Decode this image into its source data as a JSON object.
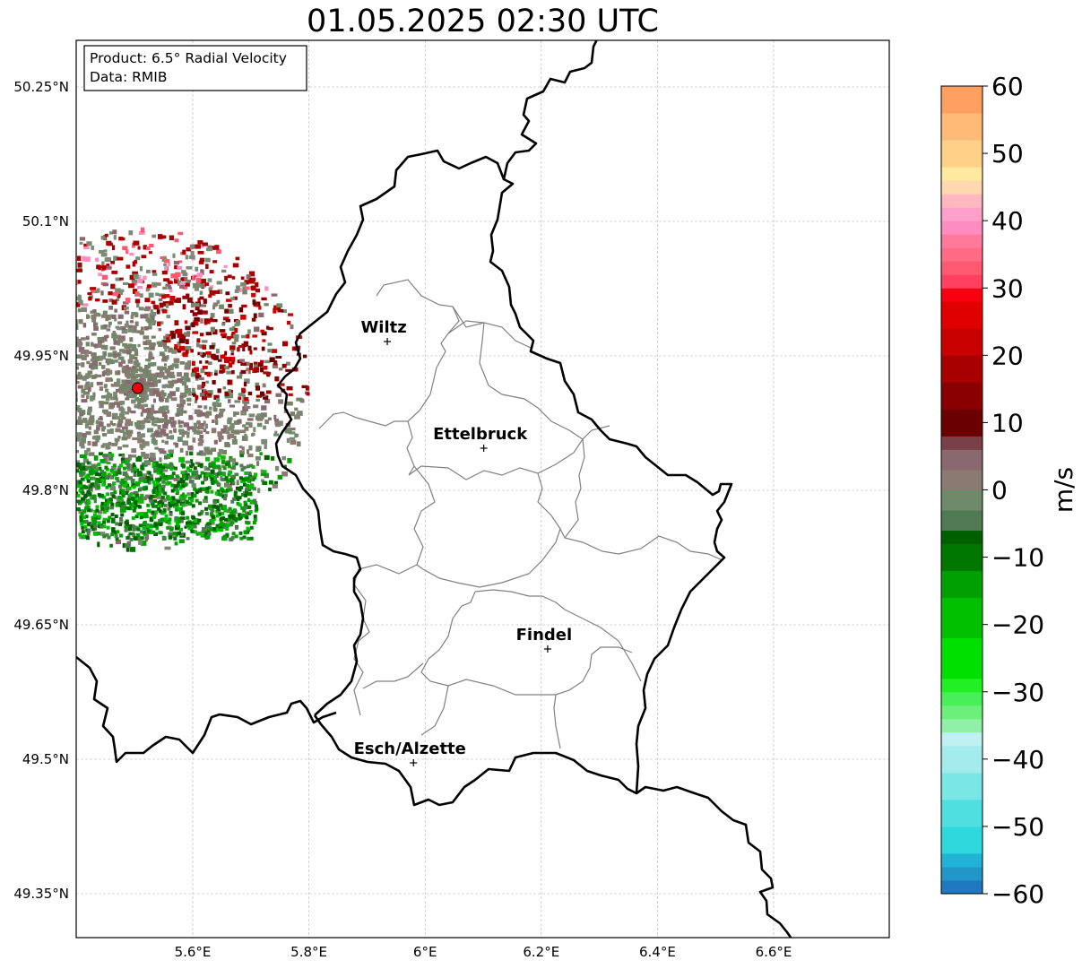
{
  "title": "01.05.2025 02:30 UTC",
  "info_box": {
    "product": "Product: 6.5° Radial Velocity",
    "data": "Data: RMIB"
  },
  "axes": {
    "lon_range": [
      5.4,
      6.8
    ],
    "lat_range": [
      49.3,
      50.3
    ],
    "x_ticks": [
      {
        "value": 5.6,
        "label": "5.6°E"
      },
      {
        "value": 5.8,
        "label": "5.8°E"
      },
      {
        "value": 6.0,
        "label": "6°E"
      },
      {
        "value": 6.2,
        "label": "6.2°E"
      },
      {
        "value": 6.4,
        "label": "6.4°E"
      },
      {
        "value": 6.6,
        "label": "6.6°E"
      }
    ],
    "y_ticks": [
      {
        "value": 50.25,
        "label": "50.25°N"
      },
      {
        "value": 50.1,
        "label": "50.1°N"
      },
      {
        "value": 49.95,
        "label": "49.95°N"
      },
      {
        "value": 49.8,
        "label": "49.8°N"
      },
      {
        "value": 49.65,
        "label": "49.65°N"
      },
      {
        "value": 49.5,
        "label": "49.5°N"
      },
      {
        "value": 49.35,
        "label": "49.35°N"
      }
    ],
    "grid": true
  },
  "cities": [
    {
      "name": "Wiltz",
      "lon": 5.935,
      "lat": 49.966
    },
    {
      "name": "Ettelbruck",
      "lon": 6.101,
      "lat": 49.847
    },
    {
      "name": "Findel",
      "lon": 6.211,
      "lat": 49.623
    },
    {
      "name": "Esch/Alzette",
      "lon": 5.98,
      "lat": 49.496
    }
  ],
  "radar_site": {
    "lon": 5.505,
    "lat": 49.914,
    "color": "#e8000b"
  },
  "colorbar": {
    "unit": "m/s",
    "min": -60,
    "max": 60,
    "ticks": [
      {
        "value": 60,
        "label": "60"
      },
      {
        "value": 50,
        "label": "50"
      },
      {
        "value": 40,
        "label": "40"
      },
      {
        "value": 30,
        "label": "30"
      },
      {
        "value": 20,
        "label": "20"
      },
      {
        "value": 10,
        "label": "10"
      },
      {
        "value": 0,
        "label": "0"
      },
      {
        "value": -10,
        "label": "−10"
      },
      {
        "value": -20,
        "label": "−20"
      },
      {
        "value": -30,
        "label": "−30"
      },
      {
        "value": -40,
        "label": "−40"
      },
      {
        "value": -50,
        "label": "−50"
      },
      {
        "value": -60,
        "label": "−60"
      }
    ],
    "stops": [
      {
        "from": -60,
        "to": -58,
        "color": "#1f78c0"
      },
      {
        "from": -58,
        "to": -56,
        "color": "#2396c8"
      },
      {
        "from": -56,
        "to": -54,
        "color": "#22b2d6"
      },
      {
        "from": -54,
        "to": -50,
        "color": "#2ed8dc"
      },
      {
        "from": -50,
        "to": -46,
        "color": "#4ee0e0"
      },
      {
        "from": -46,
        "to": -42,
        "color": "#7ae6e6"
      },
      {
        "from": -42,
        "to": -38,
        "color": "#a4ecec"
      },
      {
        "from": -38,
        "to": -36,
        "color": "#c0f0f2"
      },
      {
        "from": -36,
        "to": -34,
        "color": "#90f0a8"
      },
      {
        "from": -34,
        "to": -32,
        "color": "#6cf07a"
      },
      {
        "from": -32,
        "to": -30,
        "color": "#48f058"
      },
      {
        "from": -30,
        "to": -28,
        "color": "#22f022"
      },
      {
        "from": -28,
        "to": -22,
        "color": "#00e000"
      },
      {
        "from": -22,
        "to": -16,
        "color": "#00c000"
      },
      {
        "from": -16,
        "to": -12,
        "color": "#00a000"
      },
      {
        "from": -12,
        "to": -8,
        "color": "#007800"
      },
      {
        "from": -8,
        "to": -6,
        "color": "#006000"
      },
      {
        "from": -6,
        "to": -3,
        "color": "#507a52"
      },
      {
        "from": -3,
        "to": 0,
        "color": "#6f8a6a"
      },
      {
        "from": 0,
        "to": 3,
        "color": "#8a7a72"
      },
      {
        "from": 3,
        "to": 6,
        "color": "#8a6870"
      },
      {
        "from": 6,
        "to": 8,
        "color": "#7a4048"
      },
      {
        "from": 8,
        "to": 12,
        "color": "#6a0000"
      },
      {
        "from": 12,
        "to": 16,
        "color": "#8a0000"
      },
      {
        "from": 16,
        "to": 20,
        "color": "#a80000"
      },
      {
        "from": 20,
        "to": 24,
        "color": "#c80000"
      },
      {
        "from": 24,
        "to": 28,
        "color": "#e00000"
      },
      {
        "from": 28,
        "to": 30,
        "color": "#f80010"
      },
      {
        "from": 30,
        "to": 32,
        "color": "#ff4060"
      },
      {
        "from": 32,
        "to": 34,
        "color": "#ff5870"
      },
      {
        "from": 34,
        "to": 36,
        "color": "#ff6c84"
      },
      {
        "from": 36,
        "to": 38,
        "color": "#ff7a9a"
      },
      {
        "from": 38,
        "to": 40,
        "color": "#ff8cc0"
      },
      {
        "from": 40,
        "to": 42,
        "color": "#ffa0cc"
      },
      {
        "from": 42,
        "to": 44,
        "color": "#ffb8c0"
      },
      {
        "from": 44,
        "to": 46,
        "color": "#ffd8b0"
      },
      {
        "from": 46,
        "to": 48,
        "color": "#ffe8a0"
      },
      {
        "from": 48,
        "to": 52,
        "color": "#ffd088"
      },
      {
        "from": 52,
        "to": 56,
        "color": "#ffba78"
      },
      {
        "from": 56,
        "to": 60,
        "color": "#ffa060"
      }
    ]
  }
}
